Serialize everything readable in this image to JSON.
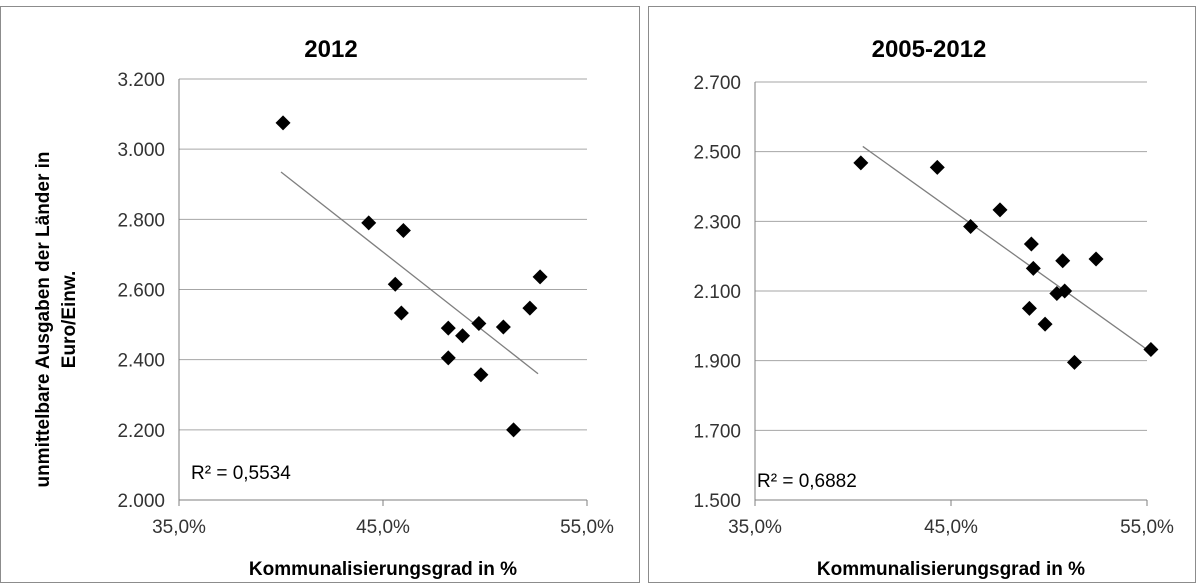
{
  "chart_data": [
    {
      "type": "scatter",
      "title": "2012",
      "xlabel": "Kommunalisierungsgrad  in %",
      "ylabel": "unmittelbare Ausgaben der Länder in Euro/Einw.",
      "xlim": [
        35,
        55
      ],
      "ylim": [
        2000,
        3200
      ],
      "x_ticks": [
        35,
        45,
        55
      ],
      "x_tick_labels": [
        "35,0%",
        "45,0%",
        "55,0%"
      ],
      "y_ticks": [
        2000,
        2200,
        2400,
        2600,
        2800,
        3000,
        3200
      ],
      "y_tick_labels": [
        "2.000",
        "2.200",
        "2.400",
        "2.600",
        "2.800",
        "3.000",
        "3.200"
      ],
      "grid": "horizontal",
      "marker": "diamond",
      "color": "#000000",
      "trendline": {
        "x": [
          40.0,
          52.6
        ],
        "y": [
          2935,
          2360
        ],
        "color": "#7f7f7f"
      },
      "annotation": "R² = 0,5534",
      "points": [
        {
          "x": 40.1,
          "y": 3075
        },
        {
          "x": 44.3,
          "y": 2790
        },
        {
          "x": 46.0,
          "y": 2768
        },
        {
          "x": 45.6,
          "y": 2615
        },
        {
          "x": 45.9,
          "y": 2533
        },
        {
          "x": 48.2,
          "y": 2490
        },
        {
          "x": 48.9,
          "y": 2468
        },
        {
          "x": 49.7,
          "y": 2503
        },
        {
          "x": 50.9,
          "y": 2493
        },
        {
          "x": 52.2,
          "y": 2547
        },
        {
          "x": 52.7,
          "y": 2636
        },
        {
          "x": 48.2,
          "y": 2405
        },
        {
          "x": 49.8,
          "y": 2357
        },
        {
          "x": 51.4,
          "y": 2200
        }
      ]
    },
    {
      "type": "scatter",
      "title": "2005-2012",
      "xlabel": "Kommunalisierungsgrad  in %",
      "ylabel": "",
      "xlim": [
        35,
        55
      ],
      "ylim": [
        1500,
        2700
      ],
      "x_ticks": [
        35,
        45,
        55
      ],
      "x_tick_labels": [
        "35,0%",
        "45,0%",
        "55,0%"
      ],
      "y_ticks": [
        1500,
        1700,
        1900,
        2100,
        2300,
        2500,
        2700
      ],
      "y_tick_labels": [
        "1.500",
        "1.700",
        "1.900",
        "2.100",
        "2.300",
        "2.500",
        "2.700"
      ],
      "grid": "horizontal",
      "marker": "diamond",
      "color": "#000000",
      "trendline": {
        "x": [
          40.5,
          55.3
        ],
        "y": [
          2515,
          1920
        ],
        "color": "#7f7f7f"
      },
      "annotation": "R² = 0,6882",
      "points": [
        {
          "x": 40.4,
          "y": 2468
        },
        {
          "x": 44.3,
          "y": 2455
        },
        {
          "x": 46.0,
          "y": 2285
        },
        {
          "x": 47.5,
          "y": 2333
        },
        {
          "x": 49.1,
          "y": 2235
        },
        {
          "x": 49.2,
          "y": 2165
        },
        {
          "x": 49.0,
          "y": 2050
        },
        {
          "x": 49.8,
          "y": 2005
        },
        {
          "x": 50.4,
          "y": 2093
        },
        {
          "x": 50.8,
          "y": 2100
        },
        {
          "x": 50.7,
          "y": 2187
        },
        {
          "x": 52.4,
          "y": 2192
        },
        {
          "x": 51.3,
          "y": 1895
        },
        {
          "x": 55.2,
          "y": 1932
        }
      ]
    }
  ]
}
